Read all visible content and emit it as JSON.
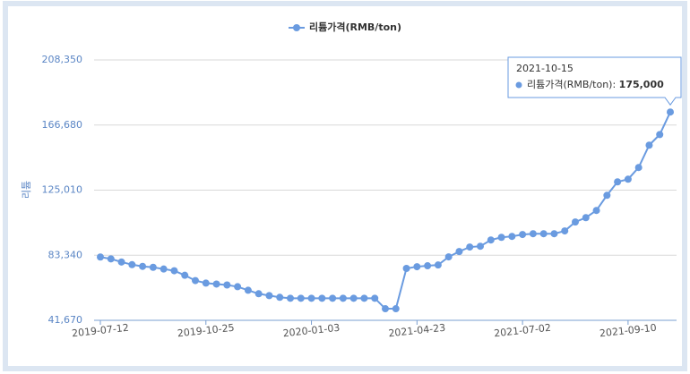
{
  "chart_data": {
    "type": "line",
    "y_label": "리튬",
    "categories": [
      "2019-07-12",
      null,
      null,
      null,
      null,
      null,
      null,
      null,
      null,
      null,
      "2019-10-25",
      null,
      null,
      null,
      null,
      null,
      null,
      null,
      null,
      null,
      "2020-01-03",
      null,
      null,
      null,
      null,
      null,
      null,
      null,
      null,
      null,
      "2021-04-23",
      null,
      null,
      null,
      null,
      null,
      null,
      null,
      null,
      null,
      "2021-07-02",
      null,
      null,
      null,
      null,
      null,
      null,
      null,
      null,
      null,
      "2021-09-10",
      null,
      null,
      null,
      null
    ],
    "series": [
      {
        "name": "리튬가격(RMB/ton)",
        "color": "#6a9be0",
        "values": [
          82200,
          81000,
          79000,
          77300,
          76200,
          75600,
          74500,
          73400,
          70500,
          67100,
          65500,
          64900,
          64300,
          63200,
          60900,
          58700,
          57500,
          56400,
          55800,
          55800,
          55800,
          55800,
          55800,
          55800,
          55800,
          55800,
          55800,
          49100,
          49100,
          74900,
          76000,
          76600,
          77100,
          82300,
          85700,
          88600,
          89100,
          93100,
          94800,
          95400,
          96600,
          97100,
          97100,
          97100,
          98900,
          104600,
          107400,
          112000,
          121700,
          130300,
          132000,
          139500,
          153800,
          160600,
          175000
        ]
      }
    ],
    "ylim": [
      41670,
      208350
    ],
    "yticks": [
      {
        "value": 41670,
        "label": "41,670"
      },
      {
        "value": 83340,
        "label": "83,340"
      },
      {
        "value": 125010,
        "label": "125,010"
      },
      {
        "value": 166680,
        "label": "166,680"
      },
      {
        "value": 208350,
        "label": "208,350"
      }
    ],
    "grid": true,
    "tooltip": {
      "date": "2021-10-15",
      "label": "175,000"
    }
  }
}
